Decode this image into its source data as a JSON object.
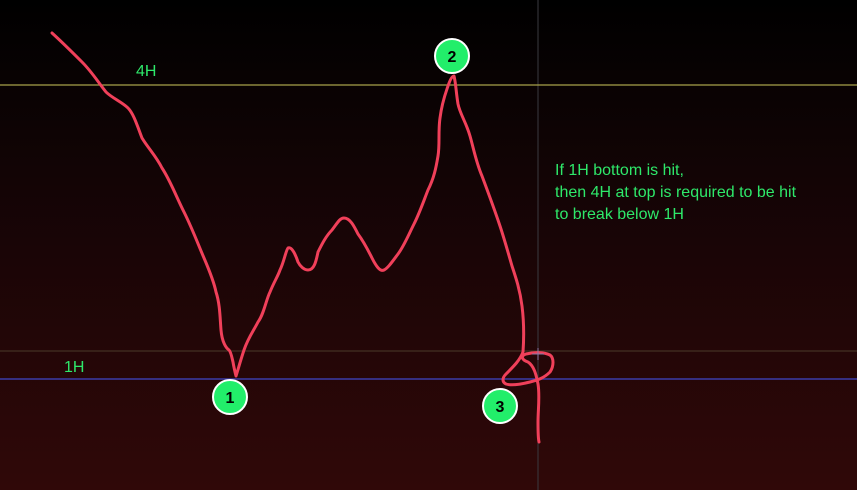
{
  "chart_data": {
    "type": "line",
    "levels": [
      {
        "label": "4H",
        "color": "#a9a34a"
      },
      {
        "label": "1H",
        "color": "#3c3ca8"
      }
    ],
    "markers": [
      "1",
      "2",
      "3"
    ],
    "annotation": [
      "If 1H bottom is hit,",
      "then 4H at top is required to be hit",
      "to break below 1H"
    ],
    "colors": {
      "path": "#f0405a",
      "marker_fill": "#22ee6a",
      "marker_stroke": "#ffffff",
      "marker_text": "#000000",
      "label_text": "#2ee86a",
      "crosshair": "#3a3a40"
    }
  }
}
